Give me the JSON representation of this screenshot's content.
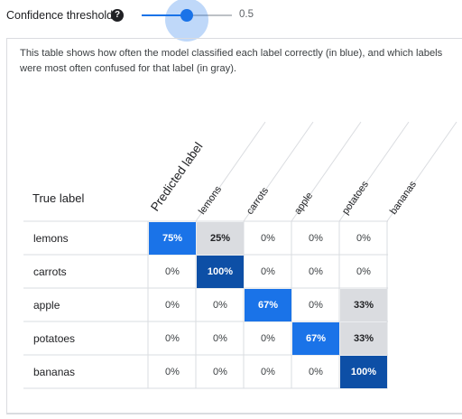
{
  "threshold": {
    "label": "Confidence threshold",
    "help_icon": "help-circle-icon",
    "value": "0.5",
    "fraction": 0.5
  },
  "description": "This table shows how often the model classified each label correctly (in blue), and which labels were most often confused for that label (in gray).",
  "matrix": {
    "row_header": "True label",
    "column_header": "Predicted label",
    "columns": [
      "lemons",
      "carrots",
      "apple",
      "potatoes",
      "bananas"
    ],
    "rows": [
      {
        "label": "lemons",
        "cells": [
          "75%",
          "25%",
          "0%",
          "0%",
          "0%"
        ],
        "styles": [
          "blue-light",
          "gray",
          "",
          "",
          ""
        ]
      },
      {
        "label": "carrots",
        "cells": [
          "0%",
          "100%",
          "0%",
          "0%",
          "0%"
        ],
        "styles": [
          "",
          "blue-dark",
          "",
          "",
          ""
        ]
      },
      {
        "label": "apple",
        "cells": [
          "0%",
          "0%",
          "67%",
          "0%",
          "33%"
        ],
        "styles": [
          "",
          "",
          "blue-light",
          "",
          "gray"
        ]
      },
      {
        "label": "potatoes",
        "cells": [
          "0%",
          "0%",
          "0%",
          "67%",
          "33%"
        ],
        "styles": [
          "",
          "",
          "",
          "blue-light",
          "gray"
        ]
      },
      {
        "label": "bananas",
        "cells": [
          "0%",
          "0%",
          "0%",
          "0%",
          "100%"
        ],
        "styles": [
          "",
          "",
          "",
          "",
          "blue-dark"
        ]
      }
    ]
  },
  "colors": {
    "accent": "#1a73e8",
    "accent_dark": "#0d4fa6",
    "confusion_gray": "#dadce0"
  }
}
